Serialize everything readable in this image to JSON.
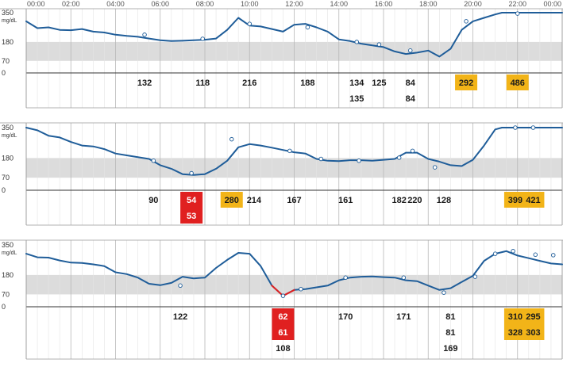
{
  "chart_data": {
    "type": "line",
    "time_ticks": [
      "00:00",
      "02:00",
      "04:00",
      "06:00",
      "08:00",
      "10:00",
      "12:00",
      "14:00",
      "16:00",
      "18:00",
      "20:00",
      "22:00",
      "00:00"
    ],
    "y_ticks": [
      350,
      180,
      70,
      0
    ],
    "y_unit": "mg/dL",
    "ylim": [
      0,
      350
    ],
    "target_range": [
      70,
      180
    ],
    "colors": {
      "line": "#1f5d99",
      "low_line": "#e02020",
      "band": "#dcdcdc",
      "low_box": "#e02020",
      "high_box": "#f2b418",
      "grid": "#cfcfcf"
    },
    "days": [
      {
        "cgm": [
          [
            0,
            300
          ],
          [
            0.5,
            260
          ],
          [
            1,
            265
          ],
          [
            1.5,
            250
          ],
          [
            2,
            248
          ],
          [
            2.5,
            255
          ],
          [
            3,
            240
          ],
          [
            3.5,
            235
          ],
          [
            4,
            222
          ],
          [
            4.5,
            215
          ],
          [
            5,
            210
          ],
          [
            5.5,
            200
          ],
          [
            6,
            190
          ],
          [
            6.5,
            185
          ],
          [
            7,
            187
          ],
          [
            7.5,
            190
          ],
          [
            8,
            193
          ],
          [
            8.5,
            200
          ],
          [
            9,
            250
          ],
          [
            9.5,
            320
          ],
          [
            10,
            275
          ],
          [
            10.5,
            270
          ],
          [
            11,
            255
          ],
          [
            11.5,
            240
          ],
          [
            12,
            280
          ],
          [
            12.5,
            285
          ],
          [
            13,
            265
          ],
          [
            13.5,
            240
          ],
          [
            14,
            195
          ],
          [
            14.5,
            185
          ],
          [
            15,
            170
          ],
          [
            15.5,
            160
          ],
          [
            16,
            150
          ],
          [
            16.5,
            125
          ],
          [
            17,
            110
          ],
          [
            17.5,
            118
          ],
          [
            18,
            130
          ],
          [
            18.5,
            95
          ],
          [
            19,
            140
          ],
          [
            19.5,
            250
          ],
          [
            20,
            300
          ],
          [
            20.5,
            320
          ],
          [
            21,
            340
          ],
          [
            21.3,
            350
          ],
          [
            24,
            350
          ]
        ],
        "meter_points": [
          [
            5.3,
            222
          ],
          [
            7.9,
            198
          ],
          [
            10,
            285
          ],
          [
            12.6,
            265
          ],
          [
            14.8,
            180
          ],
          [
            15.8,
            165
          ],
          [
            17.2,
            130
          ],
          [
            19.7,
            300
          ],
          [
            22,
            345
          ]
        ],
        "readings": [
          {
            "time": 5.3,
            "values": [
              "132"
            ],
            "status": "normal"
          },
          {
            "time": 7.9,
            "values": [
              "118"
            ],
            "status": "normal"
          },
          {
            "time": 10,
            "values": [
              "216"
            ],
            "status": "normal"
          },
          {
            "time": 12.6,
            "values": [
              "188"
            ],
            "status": "normal"
          },
          {
            "time": 14.8,
            "values": [
              "134",
              "135"
            ],
            "status": "normal"
          },
          {
            "time": 15.8,
            "values": [
              "125"
            ],
            "status": "normal"
          },
          {
            "time": 17.2,
            "values": [
              "84",
              "84"
            ],
            "status": "normal"
          },
          {
            "time": 19.7,
            "values": [
              "292"
            ],
            "status": "high"
          },
          {
            "time": 22,
            "values": [
              "486"
            ],
            "status": "high"
          }
        ]
      },
      {
        "cgm": [
          [
            0,
            350
          ],
          [
            0.5,
            335
          ],
          [
            1,
            305
          ],
          [
            1.5,
            295
          ],
          [
            2,
            270
          ],
          [
            2.5,
            250
          ],
          [
            3,
            245
          ],
          [
            3.5,
            230
          ],
          [
            4,
            205
          ],
          [
            4.5,
            195
          ],
          [
            5,
            185
          ],
          [
            5.5,
            175
          ],
          [
            6,
            140
          ],
          [
            6.5,
            120
          ],
          [
            7,
            90
          ],
          [
            7.5,
            85
          ],
          [
            8,
            90
          ],
          [
            8.5,
            120
          ],
          [
            9,
            165
          ],
          [
            9.5,
            240
          ],
          [
            10,
            258
          ],
          [
            10.5,
            250
          ],
          [
            11,
            238
          ],
          [
            11.5,
            225
          ],
          [
            12,
            212
          ],
          [
            12.5,
            205
          ],
          [
            13,
            175
          ],
          [
            13.5,
            165
          ],
          [
            14,
            163
          ],
          [
            14.5,
            168
          ],
          [
            15,
            168
          ],
          [
            15.5,
            165
          ],
          [
            16,
            170
          ],
          [
            16.5,
            175
          ],
          [
            17,
            210
          ],
          [
            17.5,
            210
          ],
          [
            18,
            175
          ],
          [
            18.5,
            160
          ],
          [
            19,
            140
          ],
          [
            19.5,
            135
          ],
          [
            20,
            170
          ],
          [
            20.5,
            250
          ],
          [
            21,
            340
          ],
          [
            21.3,
            350
          ],
          [
            24,
            350
          ]
        ],
        "meter_points": [
          [
            5.7,
            165
          ],
          [
            7.4,
            95
          ],
          [
            9.2,
            285
          ],
          [
            11.8,
            220
          ],
          [
            13.2,
            175
          ],
          [
            14.9,
            165
          ],
          [
            16.7,
            182
          ],
          [
            17.3,
            220
          ],
          [
            18.3,
            128
          ],
          [
            21.9,
            355
          ],
          [
            22.7,
            355
          ]
        ],
        "readings": [
          {
            "time": 5.7,
            "values": [
              "90"
            ],
            "status": "normal"
          },
          {
            "time": 7.4,
            "values": [
              "54",
              "53"
            ],
            "status": "low"
          },
          {
            "time": 9.2,
            "values": [
              "280"
            ],
            "status": "high"
          },
          {
            "time": 10.2,
            "values": [
              "214"
            ],
            "status": "normal"
          },
          {
            "time": 12,
            "values": [
              "167"
            ],
            "status": "normal"
          },
          {
            "time": 14.3,
            "values": [
              "161"
            ],
            "status": "normal"
          },
          {
            "time": 16.7,
            "values": [
              "182"
            ],
            "status": "normal"
          },
          {
            "time": 17.4,
            "values": [
              "220"
            ],
            "status": "normal"
          },
          {
            "time": 18.7,
            "values": [
              "128"
            ],
            "status": "normal"
          },
          {
            "time": 21.9,
            "values": [
              "399"
            ],
            "status": "high"
          },
          {
            "time": 22.7,
            "values": [
              "421"
            ],
            "status": "high"
          }
        ]
      },
      {
        "cgm": [
          [
            0,
            300
          ],
          [
            0.5,
            280
          ],
          [
            1,
            278
          ],
          [
            1.5,
            262
          ],
          [
            2,
            250
          ],
          [
            2.5,
            248
          ],
          [
            3,
            240
          ],
          [
            3.5,
            230
          ],
          [
            4,
            195
          ],
          [
            4.5,
            185
          ],
          [
            5,
            165
          ],
          [
            5.5,
            130
          ],
          [
            6,
            122
          ],
          [
            6.5,
            135
          ],
          [
            7,
            170
          ],
          [
            7.5,
            160
          ],
          [
            8,
            165
          ],
          [
            8.5,
            220
          ],
          [
            9,
            265
          ],
          [
            9.5,
            305
          ],
          [
            10,
            300
          ],
          [
            10.5,
            230
          ],
          [
            11,
            120
          ],
          [
            11.5,
            62
          ],
          [
            12,
            95
          ],
          [
            12.5,
            100
          ],
          [
            13,
            110
          ],
          [
            13.5,
            120
          ],
          [
            14,
            150
          ],
          [
            14.5,
            165
          ],
          [
            15,
            170
          ],
          [
            15.5,
            172
          ],
          [
            16,
            168
          ],
          [
            16.5,
            165
          ],
          [
            17,
            150
          ],
          [
            17.5,
            145
          ],
          [
            18,
            120
          ],
          [
            18.5,
            95
          ],
          [
            19,
            105
          ],
          [
            19.5,
            140
          ],
          [
            20,
            175
          ],
          [
            20.5,
            260
          ],
          [
            21,
            300
          ],
          [
            21.5,
            315
          ],
          [
            22,
            290
          ],
          [
            22.5,
            275
          ],
          [
            23,
            260
          ],
          [
            23.5,
            245
          ],
          [
            24,
            240
          ]
        ],
        "meter_points": [
          [
            6.9,
            120
          ],
          [
            11.5,
            62
          ],
          [
            12.3,
            100
          ],
          [
            14.3,
            165
          ],
          [
            16.9,
            165
          ],
          [
            18.7,
            80
          ],
          [
            20.1,
            170
          ],
          [
            21,
            300
          ],
          [
            21.8,
            315
          ],
          [
            22.8,
            295
          ],
          [
            23.6,
            292
          ]
        ],
        "readings": [
          {
            "time": 6.9,
            "values": [
              "122"
            ],
            "status": "normal"
          },
          {
            "time": 11.5,
            "values": [
              "62",
              "61"
            ],
            "status": "low"
          },
          {
            "time": 11.5,
            "values": [
              "108"
            ],
            "status": "normal",
            "row": 2
          },
          {
            "time": 14.3,
            "values": [
              "170"
            ],
            "status": "normal"
          },
          {
            "time": 16.9,
            "values": [
              "171"
            ],
            "status": "normal"
          },
          {
            "time": 19,
            "values": [
              "81",
              "81",
              "169"
            ],
            "status": "normal"
          },
          {
            "time": 21.9,
            "values": [
              "310",
              "328"
            ],
            "status": "high"
          },
          {
            "time": 22.7,
            "values": [
              "295",
              "303"
            ],
            "status": "high"
          }
        ]
      }
    ]
  }
}
